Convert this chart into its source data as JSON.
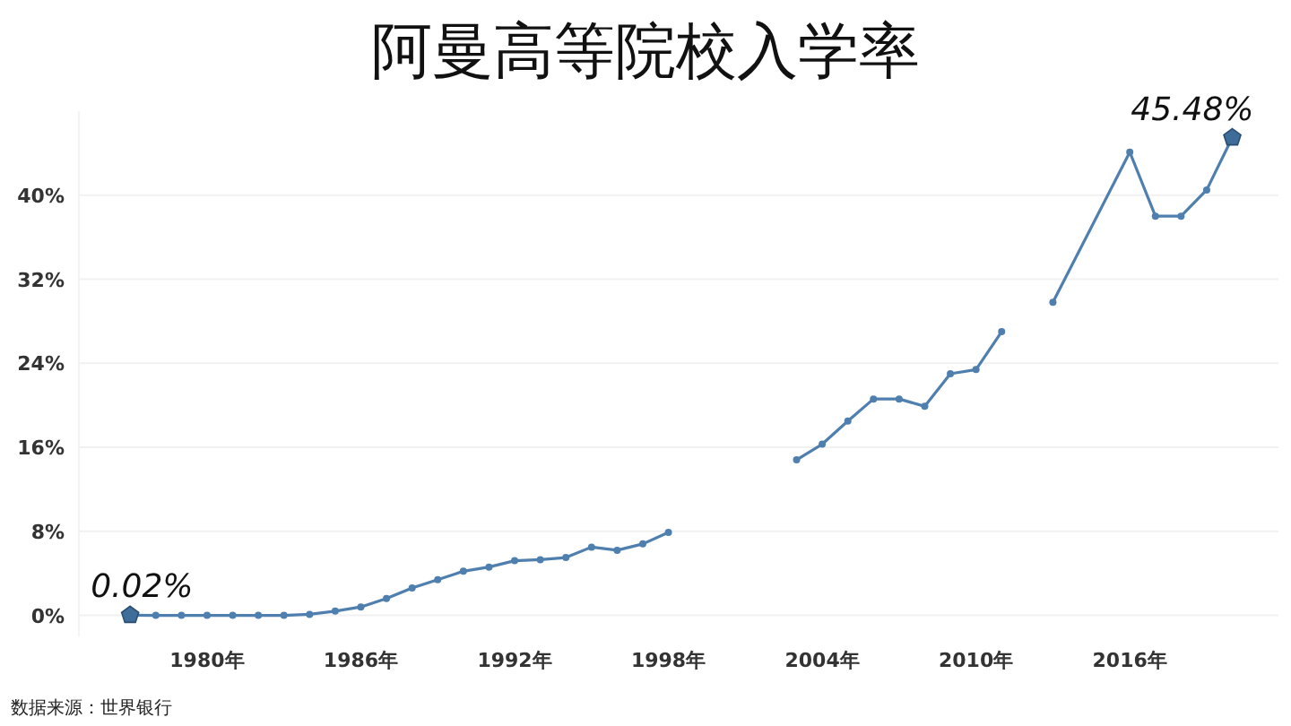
{
  "chart_data": {
    "type": "line",
    "title": "阿曼高等院校入学率",
    "x": [
      1977,
      1978,
      1979,
      1980,
      1981,
      1982,
      1983,
      1984,
      1985,
      1986,
      1987,
      1988,
      1989,
      1990,
      1991,
      1992,
      1993,
      1994,
      1995,
      1996,
      1997,
      1998,
      1999,
      2002,
      2003,
      2004,
      2005,
      2006,
      2007,
      2008,
      2009,
      2010,
      2011,
      2012,
      2013,
      2016,
      2017,
      2018,
      2019,
      2020
    ],
    "series": [
      {
        "color": "#4f7fae",
        "values": [
          0.02,
          0,
          0,
          0,
          0,
          0,
          0,
          0.1,
          0.4,
          0.8,
          1.6,
          2.6,
          3.4,
          4.2,
          4.6,
          5.2,
          5.3,
          5.5,
          6.5,
          6.2,
          6.8,
          7.9,
          null,
          null,
          14.8,
          16.3,
          18.5,
          20.6,
          20.6,
          19.9,
          23.0,
          23.4,
          27.0,
          null,
          29.8,
          44.1,
          38.0,
          38.0,
          40.5,
          45.48
        ]
      }
    ],
    "xlim": [
      1975,
      2021.8
    ],
    "ylim": [
      -2,
      48
    ],
    "xticks": [
      {
        "value": 1980,
        "label": "1980年"
      },
      {
        "value": 1986,
        "label": "1986年"
      },
      {
        "value": 1992,
        "label": "1992年"
      },
      {
        "value": 1998,
        "label": "1998年"
      },
      {
        "value": 2004,
        "label": "2004年"
      },
      {
        "value": 2010,
        "label": "2010年"
      },
      {
        "value": 2016,
        "label": "2016年"
      }
    ],
    "yticks": [
      {
        "value": 0,
        "label": "0%"
      },
      {
        "value": 8,
        "label": "8%"
      },
      {
        "value": 16,
        "label": "16%"
      },
      {
        "value": 24,
        "label": "24%"
      },
      {
        "value": 32,
        "label": "32%"
      },
      {
        "value": 40,
        "label": "40%"
      }
    ],
    "grid": "y",
    "marker": "circle",
    "line_style": "solid",
    "annotations": [
      {
        "text": "0.02%",
        "x": 1977,
        "y": 0.02
      },
      {
        "text": "45.48%",
        "x": 2020,
        "y": 45.48
      },
      "数据来源：世界银行"
    ]
  }
}
